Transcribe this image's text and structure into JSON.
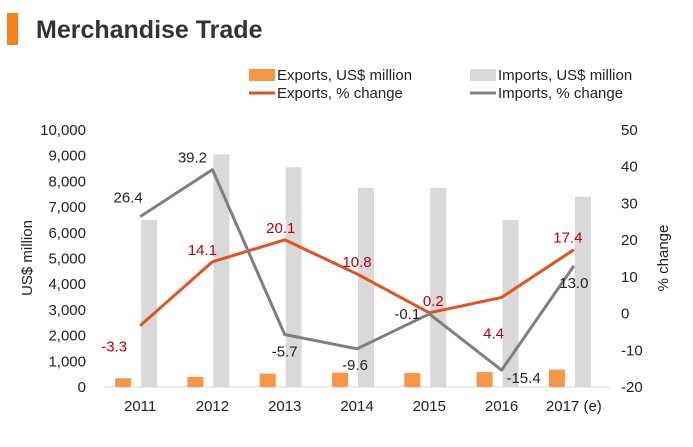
{
  "header": {
    "title": "Merchandise Trade",
    "accent_color": "#F7821B"
  },
  "chart_data": {
    "type": "bar",
    "categories": [
      "2011",
      "2012",
      "2013",
      "2014",
      "2015",
      "2016",
      "2017 (e)"
    ],
    "series": [
      {
        "name": "Exports, US$ million",
        "kind": "bar",
        "axis": "left",
        "color": "#F79646",
        "values": [
          340,
          390,
          520,
          560,
          540,
          580,
          680
        ]
      },
      {
        "name": "Imports, US$ million",
        "kind": "bar",
        "axis": "left",
        "color": "#D9D9D9",
        "values": [
          6500,
          9050,
          8550,
          7750,
          7750,
          6500,
          7400
        ]
      },
      {
        "name": "Exports, % change",
        "kind": "line",
        "axis": "right",
        "color": "#E0541E",
        "values": [
          -3.3,
          14.1,
          20.1,
          10.8,
          0.2,
          4.4,
          17.4
        ],
        "labels": [
          "-3.3",
          "14.1",
          "20.1",
          "10.8",
          "0.2",
          "4.4",
          "17.4"
        ],
        "label_color": "#C00000"
      },
      {
        "name": "Imports, % change",
        "kind": "line",
        "axis": "right",
        "color": "#7F7F7F",
        "values": [
          26.4,
          39.2,
          -5.7,
          -9.6,
          -0.1,
          -15.4,
          13.0
        ],
        "labels": [
          "26.4",
          "39.2",
          "-5.7",
          "-9.6",
          "-0.1",
          "-15.4",
          "13.0"
        ],
        "label_color": "#222222"
      }
    ],
    "ylabel": "US$ million",
    "y2label": "% change",
    "ylim": [
      0,
      10000
    ],
    "y2lim": [
      -20,
      50
    ],
    "yticks": [
      "0",
      "1,000",
      "2,000",
      "3,000",
      "4,000",
      "5,000",
      "6,000",
      "7,000",
      "8,000",
      "9,000",
      "10,000"
    ],
    "y2ticks": [
      "-20",
      "-10",
      "0",
      "10",
      "20",
      "30",
      "40",
      "50"
    ],
    "grid": false,
    "legend": "top"
  }
}
